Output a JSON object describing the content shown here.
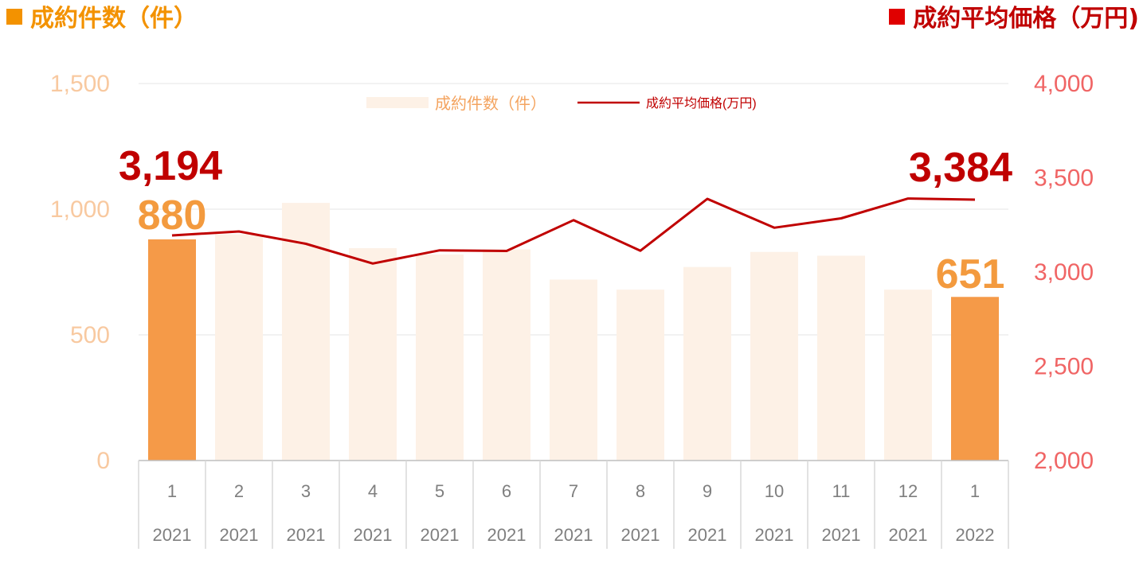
{
  "header": {
    "left_title": "成約件数（件）",
    "right_title": "成約平均価格（万円)"
  },
  "colors": {
    "bar_light": "#fdf1e6",
    "bar_highlight": "#f59a48",
    "line": "#c00000",
    "left_axis": "#f8c9a0",
    "right_axis": "#f06565",
    "header_left": "#f39200",
    "header_right": "#e00000"
  },
  "chart_data": {
    "type": "bar+line",
    "categories": [
      {
        "month": "1",
        "year": "2021"
      },
      {
        "month": "2",
        "year": "2021"
      },
      {
        "month": "3",
        "year": "2021"
      },
      {
        "month": "4",
        "year": "2021"
      },
      {
        "month": "5",
        "year": "2021"
      },
      {
        "month": "6",
        "year": "2021"
      },
      {
        "month": "7",
        "year": "2021"
      },
      {
        "month": "8",
        "year": "2021"
      },
      {
        "month": "9",
        "year": "2021"
      },
      {
        "month": "10",
        "year": "2021"
      },
      {
        "month": "11",
        "year": "2021"
      },
      {
        "month": "12",
        "year": "2021"
      },
      {
        "month": "1",
        "year": "2022"
      }
    ],
    "series": [
      {
        "name": "成約件数（件）",
        "type": "bar",
        "axis": "left",
        "values": [
          880,
          900,
          1025,
          845,
          820,
          840,
          720,
          680,
          770,
          830,
          815,
          680,
          651
        ],
        "highlight_index": [
          0,
          12
        ]
      },
      {
        "name": "成約平均価格(万円)",
        "type": "line",
        "axis": "right",
        "values": [
          3194,
          3215,
          3150,
          3045,
          3115,
          3112,
          3275,
          3113,
          3388,
          3235,
          3285,
          3390,
          3384
        ]
      }
    ],
    "left_axis": {
      "range": [
        0,
        1500
      ],
      "ticks": [
        "0",
        "500",
        "1,000",
        "1,500"
      ]
    },
    "right_axis": {
      "range": [
        2000,
        4000
      ],
      "ticks": [
        "2,000",
        "2,500",
        "3,000",
        "3,500",
        "4,000"
      ]
    },
    "legend": {
      "position": "top-center",
      "bar_label": "成約件数（件）",
      "line_label": "成約平均価格(万円)"
    },
    "data_labels": {
      "bar_first": "880",
      "bar_last": "651",
      "line_first": "3,194",
      "line_last": "3,384"
    },
    "grid": true
  }
}
